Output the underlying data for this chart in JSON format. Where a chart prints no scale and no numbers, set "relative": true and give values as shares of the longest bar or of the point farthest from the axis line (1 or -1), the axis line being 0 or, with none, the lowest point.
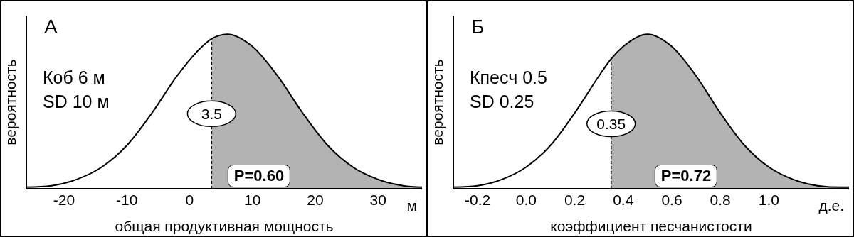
{
  "chart_data": [
    {
      "type": "line",
      "title": "А",
      "xlabel": "общая продуктивная мощность",
      "ylabel": "вероятность",
      "relative": true,
      "tick_labels": "x",
      "xlim": [
        -26,
        37
      ],
      "xticks": [
        -20,
        -10,
        0,
        10,
        20,
        30
      ],
      "series": [
        {
          "type": "area",
          "color": "#b3b3b3",
          "x": [
            3.5,
            6,
            10,
            14,
            18,
            22,
            26,
            30,
            34,
            37
          ],
          "values": [
            0.97,
            1,
            0.92,
            0.73,
            0.49,
            0.28,
            0.14,
            0.06,
            0.02,
            0.01
          ]
        },
        {
          "type": "line",
          "color": "#000000",
          "x": [
            -26,
            -22,
            -18,
            -14,
            -10,
            -6,
            -2,
            2,
            3.5,
            6,
            10,
            14,
            18,
            22,
            26,
            30,
            34,
            37
          ],
          "values": [
            0.01,
            0.02,
            0.06,
            0.14,
            0.28,
            0.49,
            0.73,
            0.92,
            0.97,
            1,
            0.92,
            0.73,
            0.49,
            0.28,
            0.14,
            0.06,
            0.02,
            0.01
          ]
        }
      ],
      "ref_lines": [
        {
          "axis": "x",
          "value": 3.5,
          "label": "3.5",
          "line_style": "dashed",
          "color": "#000000"
        }
      ],
      "annotations": [
        "Коб 6 м",
        "SD 10 м",
        "P=0.60",
        "м"
      ]
    },
    {
      "type": "line",
      "title": "Б",
      "xlabel": "коэффициент песчанистости",
      "ylabel": "вероятность",
      "relative": true,
      "tick_labels": "x",
      "xlim": [
        -0.3,
        1.33
      ],
      "xticks": [
        -0.2,
        {
          "value": 0,
          "label": "0.0"
        },
        0.2,
        0.4,
        0.6,
        0.8,
        {
          "value": 1,
          "label": "1.0"
        }
      ],
      "series": [
        {
          "type": "area",
          "color": "#b3b3b3",
          "x": [
            0.35,
            0.4,
            0.5,
            0.6,
            0.7,
            0.8,
            0.9,
            1.0,
            1.1,
            1.2,
            1.3,
            1.33
          ],
          "values": [
            0.84,
            0.92,
            1,
            0.92,
            0.73,
            0.49,
            0.28,
            0.14,
            0.06,
            0.02,
            0.01,
            0.01
          ]
        },
        {
          "type": "line",
          "color": "#000000",
          "x": [
            -0.3,
            -0.2,
            -0.1,
            0,
            0.1,
            0.2,
            0.3,
            0.35,
            0.4,
            0.5,
            0.6,
            0.7,
            0.8,
            0.9,
            1.0,
            1.1,
            1.2,
            1.3,
            1.33
          ],
          "values": [
            0.01,
            0.02,
            0.06,
            0.14,
            0.28,
            0.49,
            0.73,
            0.84,
            0.92,
            1,
            0.92,
            0.73,
            0.49,
            0.28,
            0.14,
            0.06,
            0.02,
            0.01,
            0.01
          ]
        }
      ],
      "ref_lines": [
        {
          "axis": "x",
          "value": 0.35,
          "label": "0.35",
          "line_style": "dashed",
          "color": "#000000"
        }
      ],
      "annotations": [
        "Кпесч 0.5",
        "SD 0.25",
        "P=0.72",
        "д.е."
      ]
    }
  ]
}
